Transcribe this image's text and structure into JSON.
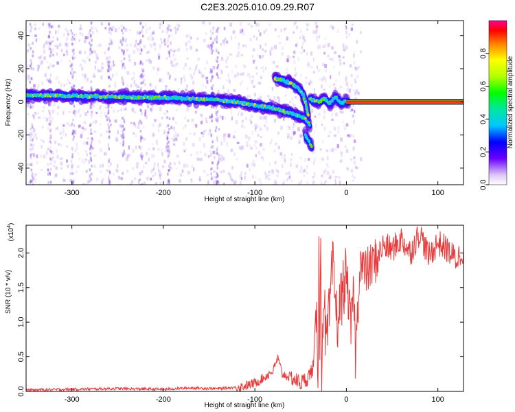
{
  "title": "C2E3.2025.010.09.29.R07",
  "chart_data": [
    {
      "type": "heatmap",
      "xlabel": "Height of straight line (km)",
      "ylabel": "Frequency (Hz)",
      "xlim": [
        -350,
        128
      ],
      "ylim": [
        -50,
        49
      ],
      "x_ticks": [
        {
          "value": -300,
          "label": "-300"
        },
        {
          "value": -200,
          "label": "-200"
        },
        {
          "value": -100,
          "label": "-100"
        },
        {
          "value": 0,
          "label": "0"
        },
        {
          "value": 100,
          "label": "100"
        }
      ],
      "y_ticks": [
        {
          "value": -40,
          "label": "-40"
        },
        {
          "value": -20,
          "label": "-20"
        },
        {
          "value": 0,
          "label": "0"
        },
        {
          "value": 20,
          "label": "20"
        },
        {
          "value": 40,
          "label": "40"
        }
      ],
      "colorbar": {
        "label": "Normalized spectral amplitude",
        "range": [
          0,
          1
        ],
        "ticks": [
          {
            "value": 0.0,
            "label": "0.0"
          },
          {
            "value": 0.2,
            "label": "0.2"
          },
          {
            "value": 0.4,
            "label": "0.4"
          },
          {
            "value": 0.6,
            "label": "0.6"
          },
          {
            "value": 0.8,
            "label": "0.8"
          }
        ]
      },
      "ridge": {
        "segments": [
          {
            "x": [
              -350,
              -250,
              -200,
              -150,
              -120,
              -100,
              -80,
              -60,
              -45,
              -40
            ],
            "y": [
              4,
              3,
              2.5,
              1.5,
              0,
              -2,
              -4,
              -7,
              -10,
              -14
            ]
          },
          {
            "x": [
              -78,
              -70,
              -60,
              -52,
              -47,
              -44,
              -42
            ],
            "y": [
              14,
              13,
              11,
              8,
              4,
              -2,
              -8
            ]
          },
          {
            "x": [
              -45,
              -38
            ],
            "y": [
              -20,
              -27
            ]
          },
          {
            "x": [
              -40,
              -30,
              -25,
              -18,
              -12,
              -6,
              0,
              2
            ],
            "y": [
              2,
              0,
              2,
              -1,
              3,
              -1,
              1,
              0
            ]
          }
        ],
        "steady": {
          "x_start": 0,
          "x_end": 128,
          "y": 0
        }
      }
    },
    {
      "type": "line",
      "xlabel": "Height of straight line (km)",
      "ylabel": "SNR (10 * v/v)",
      "y_multiplier": "(x10",
      "y_multiplier_exp": "4",
      "xlim": [
        -350,
        128
      ],
      "ylim": [
        0,
        2.4
      ],
      "color": "#e83a3a",
      "x_ticks": [
        {
          "value": -300,
          "label": "-300"
        },
        {
          "value": -200,
          "label": "-200"
        },
        {
          "value": -100,
          "label": "-100"
        },
        {
          "value": 0,
          "label": "0"
        },
        {
          "value": 100,
          "label": "100"
        }
      ],
      "y_ticks": [
        {
          "value": 0.0,
          "label": "0.0"
        },
        {
          "value": 0.5,
          "label": "0.5"
        },
        {
          "value": 1.0,
          "label": "1.0"
        },
        {
          "value": 1.5,
          "label": "1.5"
        },
        {
          "value": 2.0,
          "label": "2.0"
        }
      ],
      "series": [
        {
          "x": [
            -350,
            -300,
            -250,
            -200,
            -170,
            -140,
            -120,
            -110,
            -100,
            -90,
            -80,
            -75,
            -70,
            -60,
            -50,
            -42,
            -36,
            -33,
            -31,
            -30,
            -29,
            -28,
            -27,
            -25,
            -22,
            -18,
            -15,
            -10,
            -5,
            0,
            5,
            8,
            10,
            15,
            20,
            30,
            40,
            50,
            60,
            70,
            80,
            90,
            100,
            110,
            120,
            128
          ],
          "y": [
            0.02,
            0.03,
            0.04,
            0.03,
            0.05,
            0.04,
            0.06,
            0.08,
            0.12,
            0.2,
            0.3,
            0.48,
            0.25,
            0.2,
            0.12,
            0.2,
            0.35,
            1.2,
            0.3,
            2.38,
            0.6,
            2.0,
            0.3,
            1.5,
            0.6,
            1.2,
            1.8,
            1.0,
            1.4,
            1.7,
            0.9,
            1.5,
            0.5,
            1.9,
            1.7,
            1.85,
            2.1,
            2.05,
            2.2,
            2.0,
            2.3,
            1.95,
            2.15,
            2.05,
            1.9,
            2.05
          ]
        }
      ]
    }
  ]
}
